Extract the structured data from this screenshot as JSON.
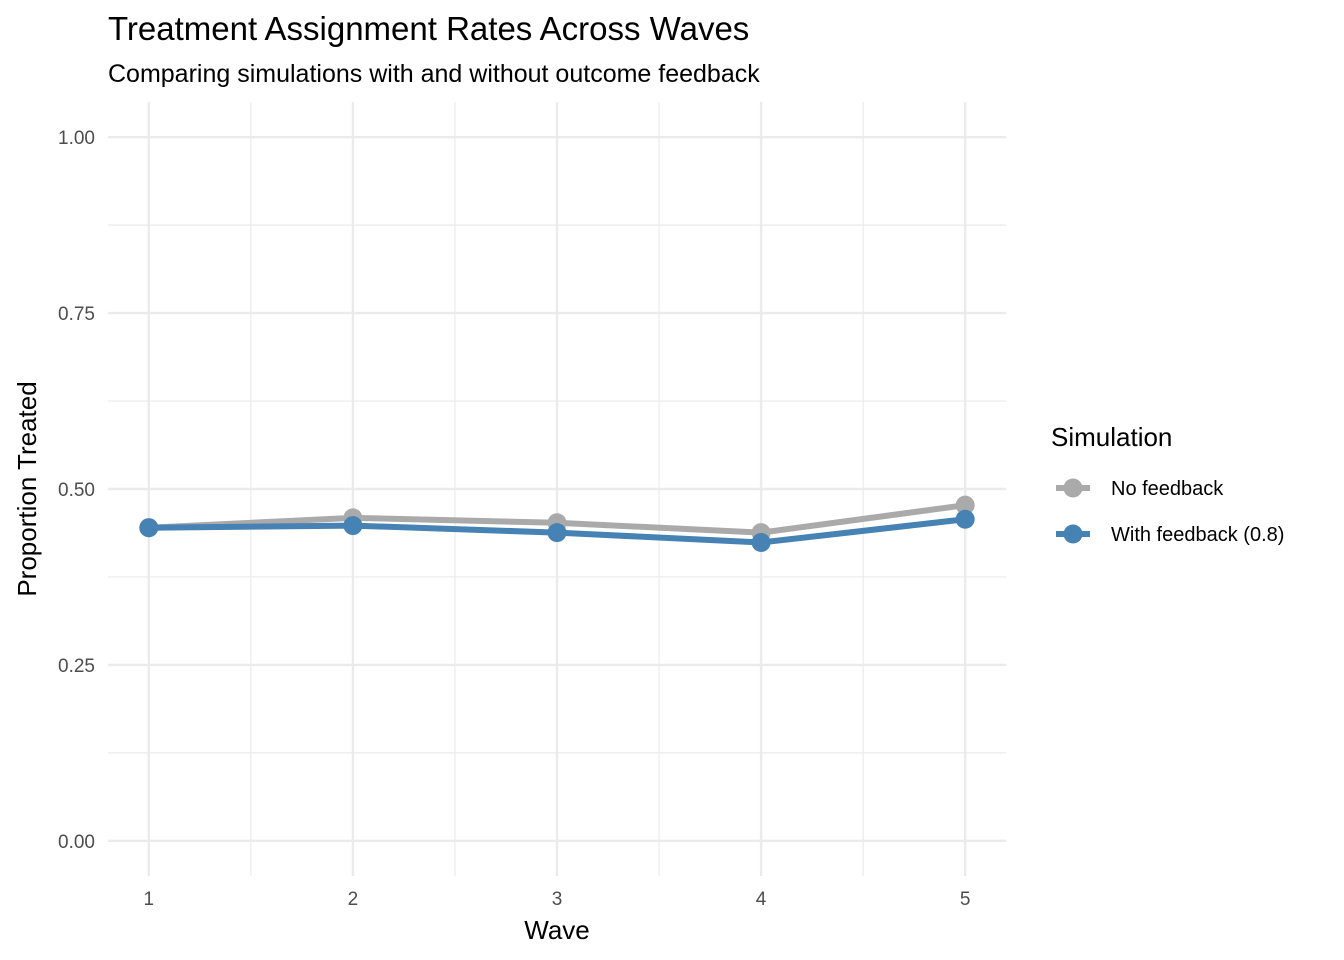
{
  "chart_data": {
    "type": "line",
    "title": "Treatment Assignment Rates Across Waves",
    "subtitle": "Comparing simulations with and without outcome feedback",
    "xlabel": "Wave",
    "ylabel": "Proportion Treated",
    "x": [
      1,
      2,
      3,
      4,
      5
    ],
    "xlim": [
      0.8,
      5.2
    ],
    "ylim": [
      -0.05,
      1.05
    ],
    "xticks": [
      1,
      2,
      3,
      4,
      5
    ],
    "yticks": [
      0.0,
      0.25,
      0.5,
      0.75,
      1.0
    ],
    "ytick_labels": [
      "0.00",
      "0.25",
      "0.50",
      "0.75",
      "1.00"
    ],
    "grid": true,
    "legend": {
      "title": "Simulation",
      "position": "right"
    },
    "series": [
      {
        "name": "No feedback",
        "color": "#AAAAAA",
        "values": [
          0.445,
          0.459,
          0.452,
          0.438,
          0.477
        ]
      },
      {
        "name": "With feedback (0.8)",
        "color": "#4682B4",
        "values": [
          0.445,
          0.448,
          0.438,
          0.424,
          0.457
        ]
      }
    ]
  }
}
